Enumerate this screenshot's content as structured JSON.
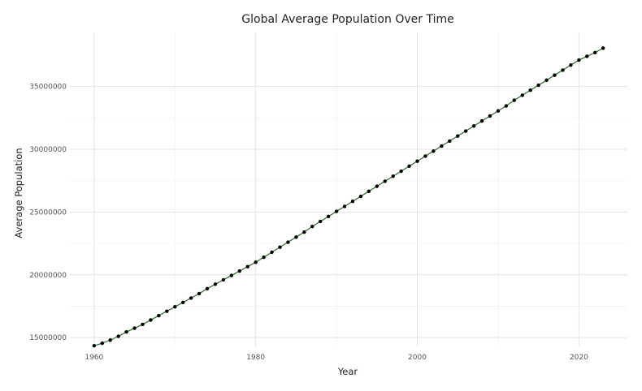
{
  "chart_data": {
    "type": "line",
    "title": "Global Average Population Over Time",
    "xlabel": "Year",
    "ylabel": "Average Population",
    "xlim": [
      1957,
      2026
    ],
    "ylim": [
      14300000,
      39300000
    ],
    "x_ticks": [
      1960,
      1980,
      2000,
      2020
    ],
    "x_tick_labels": [
      "1960",
      "1980",
      "2000",
      "2020"
    ],
    "y_ticks": [
      15000000,
      20000000,
      25000000,
      30000000,
      35000000
    ],
    "y_tick_labels": [
      "15000000",
      "20000000",
      "25000000",
      "30000000",
      "35000000"
    ],
    "grid": true,
    "legend": "none",
    "colors": {
      "line": "#2e6b2e",
      "point": "#000000"
    },
    "series": [
      {
        "x": [
          1960,
          1961,
          1962,
          1963,
          1964,
          1965,
          1966,
          1967,
          1968,
          1969,
          1970,
          1971,
          1972,
          1973,
          1974,
          1975,
          1976,
          1977,
          1978,
          1979,
          1980,
          1981,
          1982,
          1983,
          1984,
          1985,
          1986,
          1987,
          1988,
          1989,
          1990,
          1991,
          1992,
          1993,
          1994,
          1995,
          1996,
          1997,
          1998,
          1999,
          2000,
          2001,
          2002,
          2003,
          2004,
          2005,
          2006,
          2007,
          2008,
          2009,
          2010,
          2011,
          2012,
          2013,
          2014,
          2015,
          2016,
          2017,
          2018,
          2019,
          2020,
          2021,
          2022,
          2023
        ],
        "values": [
          14350000,
          14550000,
          14800000,
          15100000,
          15450000,
          15750000,
          16050000,
          16400000,
          16750000,
          17100000,
          17450000,
          17800000,
          18150000,
          18500000,
          18900000,
          19250000,
          19600000,
          19950000,
          20300000,
          20650000,
          21000000,
          21400000,
          21800000,
          22200000,
          22600000,
          23000000,
          23400000,
          23850000,
          24250000,
          24650000,
          25050000,
          25450000,
          25850000,
          26250000,
          26650000,
          27050000,
          27450000,
          27850000,
          28250000,
          28650000,
          29050000,
          29450000,
          29850000,
          30250000,
          30650000,
          31050000,
          31450000,
          31850000,
          32250000,
          32650000,
          33050000,
          33450000,
          33900000,
          34300000,
          34700000,
          35100000,
          35500000,
          35900000,
          36300000,
          36700000,
          37100000,
          37400000,
          37700000,
          38050000
        ]
      }
    ]
  }
}
